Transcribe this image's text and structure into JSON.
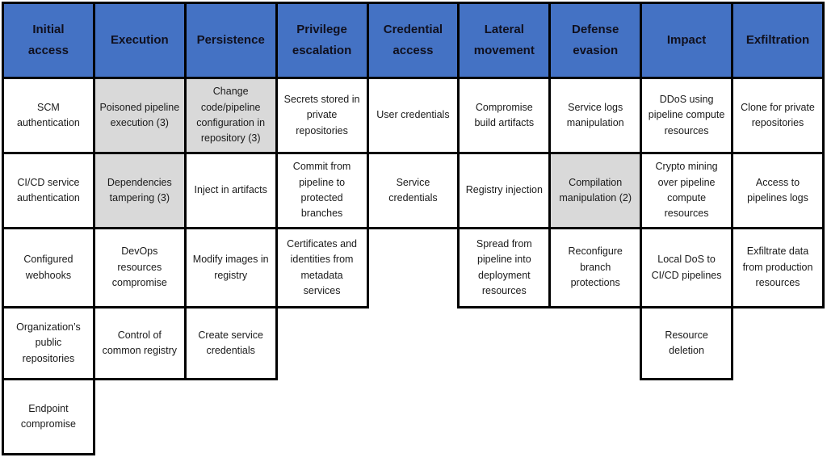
{
  "colors": {
    "header_bg": "#4472c4",
    "highlight_bg": "#d9d9d9",
    "cell_bg": "#ffffff",
    "border": "#000000"
  },
  "matrix": {
    "columns": [
      {
        "header": "Initial access",
        "cells": [
          {
            "text": "SCM authentication",
            "fill": "white"
          },
          {
            "text": "CI/CD service authentication",
            "fill": "white"
          },
          {
            "text": "Configured webhooks",
            "fill": "white"
          },
          {
            "text": "Organization’s public repositories",
            "fill": "white"
          },
          {
            "text": "Endpoint compromise",
            "fill": "white"
          }
        ]
      },
      {
        "header": "Execution",
        "cells": [
          {
            "text": "Poisoned pipeline execution (3)",
            "fill": "gray"
          },
          {
            "text": "Dependencies tampering (3)",
            "fill": "gray"
          },
          {
            "text": "DevOps resources compromise",
            "fill": "white"
          },
          {
            "text": "Control of common registry",
            "fill": "white"
          }
        ]
      },
      {
        "header": "Persistence",
        "cells": [
          {
            "text": "Change code/pipeline configuration in repository (3)",
            "fill": "gray"
          },
          {
            "text": "Inject in artifacts",
            "fill": "white"
          },
          {
            "text": "Modify images in registry",
            "fill": "white"
          },
          {
            "text": "Create service credentials",
            "fill": "white"
          }
        ]
      },
      {
        "header": "Privilege escalation",
        "cells": [
          {
            "text": "Secrets stored in private repositories",
            "fill": "white"
          },
          {
            "text": "Commit from pipeline to protected branches",
            "fill": "white"
          },
          {
            "text": "Certificates and identities from metadata services",
            "fill": "white"
          }
        ]
      },
      {
        "header": "Credential access",
        "cells": [
          {
            "text": "User credentials",
            "fill": "white"
          },
          {
            "text": "Service credentials",
            "fill": "white"
          }
        ]
      },
      {
        "header": "Lateral movement",
        "cells": [
          {
            "text": "Compromise build artifacts",
            "fill": "white"
          },
          {
            "text": "Registry injection",
            "fill": "white"
          },
          {
            "text": "Spread from pipeline into deployment resources",
            "fill": "white"
          }
        ]
      },
      {
        "header": "Defense evasion",
        "cells": [
          {
            "text": "Service logs manipulation",
            "fill": "white"
          },
          {
            "text": "Compilation manipulation (2)",
            "fill": "gray"
          },
          {
            "text": "Reconfigure branch protections",
            "fill": "white"
          }
        ]
      },
      {
        "header": "Impact",
        "cells": [
          {
            "text": "DDoS using pipeline compute resources",
            "fill": "white"
          },
          {
            "text": "Crypto mining over pipeline compute resources",
            "fill": "white"
          },
          {
            "text": "Local DoS to CI/CD pipelines",
            "fill": "white"
          },
          {
            "text": "Resource deletion",
            "fill": "white"
          }
        ]
      },
      {
        "header": "Exfiltration",
        "cells": [
          {
            "text": "Clone for private repositories",
            "fill": "white"
          },
          {
            "text": "Access to pipelines logs",
            "fill": "white"
          },
          {
            "text": "Exfiltrate data from production resources",
            "fill": "white"
          }
        ]
      }
    ]
  }
}
